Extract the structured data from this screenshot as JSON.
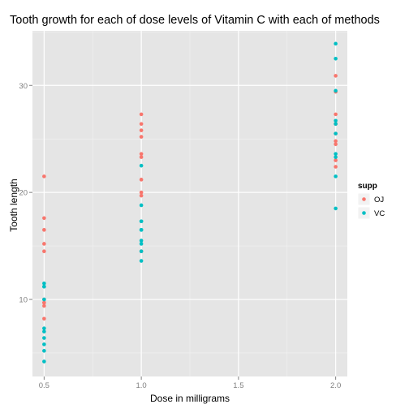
{
  "chart_data": {
    "type": "scatter",
    "title": "Tooth growth for each of dose levels of Vitamin C with each of methods",
    "xlabel": "Dose in milligrams",
    "ylabel": "Tooth length",
    "xlim": [
      0.44,
      2.06
    ],
    "ylim": [
      2.8,
      35.1
    ],
    "x_ticks": [
      0.5,
      1.0,
      1.5,
      2.0
    ],
    "x_tick_labels": [
      "0.5",
      "1.0",
      "1.5",
      "2.0"
    ],
    "y_ticks": [
      10,
      20,
      30
    ],
    "y_tick_labels": [
      "10",
      "20",
      "30"
    ],
    "grid": true,
    "legend": {
      "title": "supp",
      "position": "right"
    },
    "series": [
      {
        "name": "OJ",
        "color": "#F8766D",
        "points": [
          [
            0.5,
            15.2
          ],
          [
            0.5,
            21.5
          ],
          [
            0.5,
            17.6
          ],
          [
            0.5,
            9.7
          ],
          [
            0.5,
            14.5
          ],
          [
            0.5,
            10.0
          ],
          [
            0.5,
            8.2
          ],
          [
            0.5,
            9.4
          ],
          [
            0.5,
            16.5
          ],
          [
            0.5,
            9.7
          ],
          [
            1.0,
            19.7
          ],
          [
            1.0,
            23.3
          ],
          [
            1.0,
            23.6
          ],
          [
            1.0,
            26.4
          ],
          [
            1.0,
            20.0
          ],
          [
            1.0,
            25.2
          ],
          [
            1.0,
            25.8
          ],
          [
            1.0,
            21.2
          ],
          [
            1.0,
            14.5
          ],
          [
            1.0,
            27.3
          ],
          [
            2.0,
            25.5
          ],
          [
            2.0,
            26.4
          ],
          [
            2.0,
            22.4
          ],
          [
            2.0,
            24.5
          ],
          [
            2.0,
            24.8
          ],
          [
            2.0,
            30.9
          ],
          [
            2.0,
            26.4
          ],
          [
            2.0,
            27.3
          ],
          [
            2.0,
            29.4
          ],
          [
            2.0,
            23.0
          ]
        ]
      },
      {
        "name": "VC",
        "color": "#00BFC4",
        "points": [
          [
            0.5,
            4.2
          ],
          [
            0.5,
            11.5
          ],
          [
            0.5,
            7.3
          ],
          [
            0.5,
            5.8
          ],
          [
            0.5,
            6.4
          ],
          [
            0.5,
            10.0
          ],
          [
            0.5,
            11.2
          ],
          [
            0.5,
            11.2
          ],
          [
            0.5,
            5.2
          ],
          [
            0.5,
            7.0
          ],
          [
            1.0,
            16.5
          ],
          [
            1.0,
            16.5
          ],
          [
            1.0,
            15.2
          ],
          [
            1.0,
            17.3
          ],
          [
            1.0,
            22.5
          ],
          [
            1.0,
            17.3
          ],
          [
            1.0,
            13.6
          ],
          [
            1.0,
            14.5
          ],
          [
            1.0,
            18.8
          ],
          [
            1.0,
            15.5
          ],
          [
            2.0,
            23.6
          ],
          [
            2.0,
            18.5
          ],
          [
            2.0,
            33.9
          ],
          [
            2.0,
            25.5
          ],
          [
            2.0,
            26.4
          ],
          [
            2.0,
            32.5
          ],
          [
            2.0,
            26.7
          ],
          [
            2.0,
            21.5
          ],
          [
            2.0,
            23.3
          ],
          [
            2.0,
            29.5
          ]
        ]
      }
    ]
  }
}
